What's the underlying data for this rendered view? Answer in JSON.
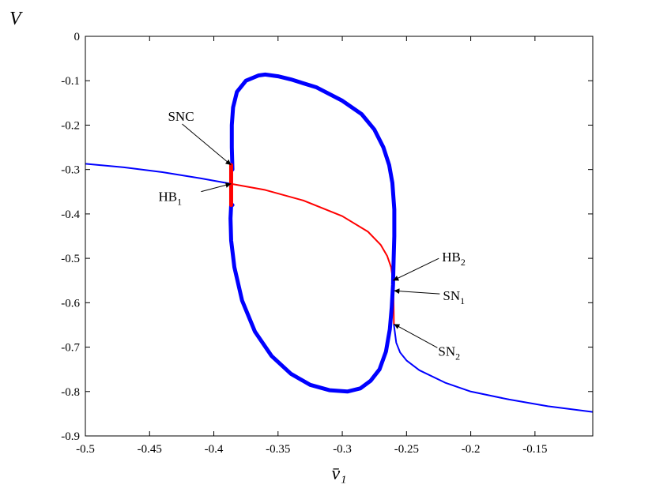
{
  "chart_data": {
    "type": "line",
    "xlabel": "v̄₁",
    "ylabel": "V",
    "xlim": [
      -0.5,
      -0.105
    ],
    "ylim": [
      -0.9,
      0
    ],
    "xticks": [
      -0.5,
      -0.45,
      -0.4,
      -0.35,
      -0.3,
      -0.25,
      -0.2,
      -0.15
    ],
    "yticks": [
      0,
      -0.1,
      -0.2,
      -0.3,
      -0.4,
      -0.5,
      -0.6,
      -0.7,
      -0.8,
      -0.9
    ],
    "xtick_labels": [
      "-0.5",
      "-0.45",
      "-0.4",
      "-0.35",
      "-0.3",
      "-0.25",
      "-0.2",
      "-0.15"
    ],
    "ytick_labels": [
      "0",
      "-0.1",
      "-0.2",
      "-0.3",
      "-0.4",
      "-0.5",
      "-0.6",
      "-0.7",
      "-0.8",
      "-0.9"
    ],
    "grid": false,
    "series": [
      {
        "role": "stable-upper-branch",
        "color": "#0000ff",
        "style": "thin",
        "x": [
          -0.5,
          -0.47,
          -0.44,
          -0.41,
          -0.387
        ],
        "y": [
          -0.287,
          -0.295,
          -0.306,
          -0.32,
          -0.332
        ]
      },
      {
        "role": "unstable-middle-branch",
        "color": "#ff0000",
        "style": "thin",
        "x": [
          -0.387,
          -0.36,
          -0.33,
          -0.3,
          -0.28,
          -0.27,
          -0.265,
          -0.262,
          -0.2605
        ],
        "y": [
          -0.332,
          -0.346,
          -0.37,
          -0.405,
          -0.44,
          -0.47,
          -0.495,
          -0.52,
          -0.55
        ]
      },
      {
        "role": "short-red-segment-near-SN",
        "color": "#ff0000",
        "style": "thin",
        "x": [
          -0.2605,
          -0.2602,
          -0.26,
          -0.2598
        ],
        "y": [
          -0.55,
          -0.575,
          -0.61,
          -0.65
        ]
      },
      {
        "role": "stable-lower-branch",
        "color": "#0000ff",
        "style": "thin",
        "x": [
          -0.2598,
          -0.258,
          -0.255,
          -0.25,
          -0.24,
          -0.22,
          -0.2,
          -0.17,
          -0.14,
          -0.105
        ],
        "y": [
          -0.65,
          -0.69,
          -0.712,
          -0.73,
          -0.752,
          -0.78,
          -0.8,
          -0.818,
          -0.833,
          -0.846
        ]
      },
      {
        "role": "periodic-orbit-branch",
        "color": "#0000ff",
        "style": "thick",
        "x": [
          -0.3855,
          -0.386,
          -0.386,
          -0.385,
          -0.382,
          -0.375,
          -0.365,
          -0.36,
          -0.35,
          -0.34,
          -0.32,
          -0.3,
          -0.285,
          -0.275,
          -0.268,
          -0.2635,
          -0.261,
          -0.2595,
          -0.2595,
          -0.26,
          -0.2605,
          -0.2615,
          -0.263,
          -0.266,
          -0.271,
          -0.278,
          -0.286,
          -0.296,
          -0.31,
          -0.325,
          -0.34,
          -0.355,
          -0.368,
          -0.378,
          -0.384,
          -0.3865,
          -0.387,
          -0.3865,
          -0.3855
        ],
        "y": [
          -0.3,
          -0.25,
          -0.2,
          -0.16,
          -0.125,
          -0.1,
          -0.088,
          -0.086,
          -0.09,
          -0.097,
          -0.115,
          -0.145,
          -0.175,
          -0.21,
          -0.25,
          -0.29,
          -0.33,
          -0.39,
          -0.45,
          -0.5,
          -0.56,
          -0.61,
          -0.66,
          -0.71,
          -0.75,
          -0.776,
          -0.793,
          -0.8,
          -0.797,
          -0.785,
          -0.76,
          -0.72,
          -0.665,
          -0.595,
          -0.52,
          -0.46,
          -0.41,
          -0.38,
          -0.38
        ]
      },
      {
        "role": "unstable-segment-at-SNC",
        "color": "#ff0000",
        "style": "thick",
        "x": [
          -0.3865,
          -0.3865
        ],
        "y": [
          -0.29,
          -0.38
        ]
      }
    ],
    "annotations": [
      {
        "label": "SNC",
        "sub": "",
        "target": [
          -0.3865,
          -0.29
        ],
        "side": "upper-left"
      },
      {
        "label": "HB",
        "sub": "1",
        "target": [
          -0.3865,
          -0.332
        ],
        "side": "lower-left"
      },
      {
        "label": "HB",
        "sub": "2",
        "target": [
          -0.2605,
          -0.55
        ],
        "side": "upper-right"
      },
      {
        "label": "SN",
        "sub": "1",
        "target": [
          -0.2598,
          -0.573
        ],
        "side": "right"
      },
      {
        "label": "SN",
        "sub": "2",
        "target": [
          -0.2598,
          -0.648
        ],
        "side": "lower-right"
      }
    ]
  }
}
